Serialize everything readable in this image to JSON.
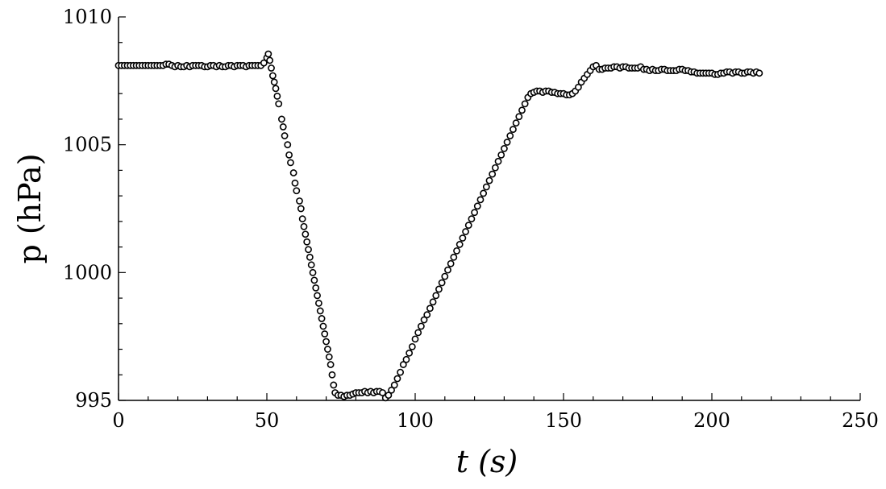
{
  "chart_data": {
    "type": "scatter",
    "xlabel": "t (s)",
    "ylabel": "p (hPa)",
    "xlim": [
      0,
      250
    ],
    "ylim": [
      995,
      1010
    ],
    "x_ticks": [
      0,
      50,
      100,
      150,
      200,
      250
    ],
    "y_ticks": [
      995,
      1000,
      1005,
      1010
    ],
    "marker": "open-circle",
    "grid": false,
    "series": [
      {
        "points": [
          [
            0,
            1008.1
          ],
          [
            1,
            1008.1
          ],
          [
            2,
            1008.1
          ],
          [
            3,
            1008.1
          ],
          [
            4,
            1008.1
          ],
          [
            5,
            1008.1
          ],
          [
            6,
            1008.1
          ],
          [
            7,
            1008.1
          ],
          [
            8,
            1008.1
          ],
          [
            9,
            1008.1
          ],
          [
            10,
            1008.1
          ],
          [
            11,
            1008.1
          ],
          [
            12,
            1008.1
          ],
          [
            13,
            1008.1
          ],
          [
            14,
            1008.1
          ],
          [
            15,
            1008.1
          ],
          [
            16,
            1008.15
          ],
          [
            17,
            1008.15
          ],
          [
            18,
            1008.1
          ],
          [
            19,
            1008.05
          ],
          [
            20,
            1008.1
          ],
          [
            21,
            1008.05
          ],
          [
            22,
            1008.05
          ],
          [
            23,
            1008.1
          ],
          [
            24,
            1008.05
          ],
          [
            25,
            1008.1
          ],
          [
            26,
            1008.1
          ],
          [
            27,
            1008.1
          ],
          [
            28,
            1008.1
          ],
          [
            29,
            1008.05
          ],
          [
            30,
            1008.05
          ],
          [
            31,
            1008.1
          ],
          [
            32,
            1008.1
          ],
          [
            33,
            1008.05
          ],
          [
            34,
            1008.1
          ],
          [
            35,
            1008.05
          ],
          [
            36,
            1008.05
          ],
          [
            37,
            1008.1
          ],
          [
            38,
            1008.1
          ],
          [
            39,
            1008.05
          ],
          [
            40,
            1008.1
          ],
          [
            41,
            1008.1
          ],
          [
            42,
            1008.1
          ],
          [
            43,
            1008.05
          ],
          [
            44,
            1008.1
          ],
          [
            45,
            1008.1
          ],
          [
            46,
            1008.1
          ],
          [
            47,
            1008.1
          ],
          [
            48,
            1008.1
          ],
          [
            49,
            1008.2
          ],
          [
            50,
            1008.4
          ],
          [
            50.5,
            1008.55
          ],
          [
            51,
            1008.3
          ],
          [
            51.5,
            1008.0
          ],
          [
            52,
            1007.7
          ],
          [
            52.5,
            1007.45
          ],
          [
            53,
            1007.2
          ],
          [
            53.5,
            1006.9
          ],
          [
            54,
            1006.6
          ],
          [
            55,
            1006.0
          ],
          [
            55.5,
            1005.7
          ],
          [
            56,
            1005.35
          ],
          [
            57,
            1005.0
          ],
          [
            57.5,
            1004.6
          ],
          [
            58,
            1004.3
          ],
          [
            59,
            1003.9
          ],
          [
            59.5,
            1003.5
          ],
          [
            60,
            1003.2
          ],
          [
            61,
            1002.8
          ],
          [
            61.5,
            1002.5
          ],
          [
            62,
            1002.1
          ],
          [
            62.5,
            1001.8
          ],
          [
            63,
            1001.5
          ],
          [
            63.5,
            1001.2
          ],
          [
            64,
            1000.9
          ],
          [
            64.5,
            1000.6
          ],
          [
            65,
            1000.3
          ],
          [
            65.5,
            1000.0
          ],
          [
            66,
            999.7
          ],
          [
            66.5,
            999.4
          ],
          [
            67,
            999.1
          ],
          [
            67.5,
            998.8
          ],
          [
            68,
            998.5
          ],
          [
            68.5,
            998.2
          ],
          [
            69,
            997.9
          ],
          [
            69.5,
            997.6
          ],
          [
            70,
            997.3
          ],
          [
            70.5,
            997.0
          ],
          [
            71,
            996.7
          ],
          [
            71.5,
            996.4
          ],
          [
            72,
            996.0
          ],
          [
            72.5,
            995.6
          ],
          [
            73,
            995.3
          ],
          [
            74,
            995.2
          ],
          [
            75,
            995.2
          ],
          [
            76,
            995.15
          ],
          [
            77,
            995.2
          ],
          [
            78,
            995.2
          ],
          [
            79,
            995.25
          ],
          [
            80,
            995.3
          ],
          [
            81,
            995.3
          ],
          [
            82,
            995.3
          ],
          [
            83,
            995.35
          ],
          [
            84,
            995.3
          ],
          [
            85,
            995.35
          ],
          [
            86,
            995.3
          ],
          [
            87,
            995.35
          ],
          [
            88,
            995.35
          ],
          [
            89,
            995.3
          ],
          [
            90,
            995.1
          ],
          [
            91,
            995.2
          ],
          [
            92,
            995.4
          ],
          [
            93,
            995.6
          ],
          [
            94,
            995.85
          ],
          [
            95,
            996.1
          ],
          [
            96,
            996.4
          ],
          [
            97,
            996.6
          ],
          [
            98,
            996.85
          ],
          [
            99,
            997.1
          ],
          [
            100,
            997.4
          ],
          [
            101,
            997.65
          ],
          [
            102,
            997.9
          ],
          [
            103,
            998.15
          ],
          [
            104,
            998.35
          ],
          [
            105,
            998.6
          ],
          [
            106,
            998.85
          ],
          [
            107,
            999.1
          ],
          [
            108,
            999.35
          ],
          [
            109,
            999.6
          ],
          [
            110,
            999.85
          ],
          [
            111,
            1000.1
          ],
          [
            112,
            1000.35
          ],
          [
            113,
            1000.6
          ],
          [
            114,
            1000.85
          ],
          [
            115,
            1001.1
          ],
          [
            116,
            1001.35
          ],
          [
            117,
            1001.6
          ],
          [
            118,
            1001.85
          ],
          [
            119,
            1002.1
          ],
          [
            120,
            1002.35
          ],
          [
            121,
            1002.6
          ],
          [
            122,
            1002.85
          ],
          [
            123,
            1003.1
          ],
          [
            124,
            1003.35
          ],
          [
            125,
            1003.6
          ],
          [
            126,
            1003.85
          ],
          [
            127,
            1004.1
          ],
          [
            128,
            1004.35
          ],
          [
            129,
            1004.6
          ],
          [
            130,
            1004.85
          ],
          [
            131,
            1005.1
          ],
          [
            132,
            1005.35
          ],
          [
            133,
            1005.6
          ],
          [
            134,
            1005.85
          ],
          [
            135,
            1006.1
          ],
          [
            136,
            1006.35
          ],
          [
            137,
            1006.6
          ],
          [
            138,
            1006.85
          ],
          [
            139,
            1007.0
          ],
          [
            140,
            1007.05
          ],
          [
            141,
            1007.1
          ],
          [
            142,
            1007.1
          ],
          [
            143,
            1007.05
          ],
          [
            144,
            1007.1
          ],
          [
            145,
            1007.1
          ],
          [
            146,
            1007.05
          ],
          [
            147,
            1007.05
          ],
          [
            148,
            1007.0
          ],
          [
            149,
            1007.0
          ],
          [
            150,
            1007.0
          ],
          [
            151,
            1006.95
          ],
          [
            152,
            1006.95
          ],
          [
            153,
            1007.0
          ],
          [
            154,
            1007.1
          ],
          [
            155,
            1007.25
          ],
          [
            156,
            1007.45
          ],
          [
            157,
            1007.6
          ],
          [
            158,
            1007.75
          ],
          [
            159,
            1007.9
          ],
          [
            160,
            1008.05
          ],
          [
            161,
            1008.1
          ],
          [
            162,
            1007.95
          ],
          [
            163,
            1007.95
          ],
          [
            164,
            1008.0
          ],
          [
            165,
            1008.0
          ],
          [
            166,
            1008.0
          ],
          [
            167,
            1008.05
          ],
          [
            168,
            1008.05
          ],
          [
            169,
            1008.0
          ],
          [
            170,
            1008.05
          ],
          [
            171,
            1008.05
          ],
          [
            172,
            1008.0
          ],
          [
            173,
            1008.0
          ],
          [
            174,
            1008.0
          ],
          [
            175,
            1008.0
          ],
          [
            176,
            1008.05
          ],
          [
            177,
            1007.95
          ],
          [
            178,
            1007.95
          ],
          [
            179,
            1007.9
          ],
          [
            180,
            1007.95
          ],
          [
            181,
            1007.9
          ],
          [
            182,
            1007.9
          ],
          [
            183,
            1007.95
          ],
          [
            184,
            1007.95
          ],
          [
            185,
            1007.9
          ],
          [
            186,
            1007.9
          ],
          [
            187,
            1007.9
          ],
          [
            188,
            1007.9
          ],
          [
            189,
            1007.95
          ],
          [
            190,
            1007.95
          ],
          [
            191,
            1007.9
          ],
          [
            192,
            1007.9
          ],
          [
            193,
            1007.85
          ],
          [
            194,
            1007.85
          ],
          [
            195,
            1007.8
          ],
          [
            196,
            1007.8
          ],
          [
            197,
            1007.8
          ],
          [
            198,
            1007.8
          ],
          [
            199,
            1007.8
          ],
          [
            200,
            1007.8
          ],
          [
            201,
            1007.75
          ],
          [
            202,
            1007.75
          ],
          [
            203,
            1007.8
          ],
          [
            204,
            1007.8
          ],
          [
            205,
            1007.85
          ],
          [
            206,
            1007.85
          ],
          [
            207,
            1007.8
          ],
          [
            208,
            1007.85
          ],
          [
            209,
            1007.85
          ],
          [
            210,
            1007.8
          ],
          [
            211,
            1007.8
          ],
          [
            212,
            1007.85
          ],
          [
            213,
            1007.85
          ],
          [
            214,
            1007.8
          ],
          [
            215,
            1007.85
          ],
          [
            216,
            1007.8
          ]
        ]
      }
    ]
  }
}
